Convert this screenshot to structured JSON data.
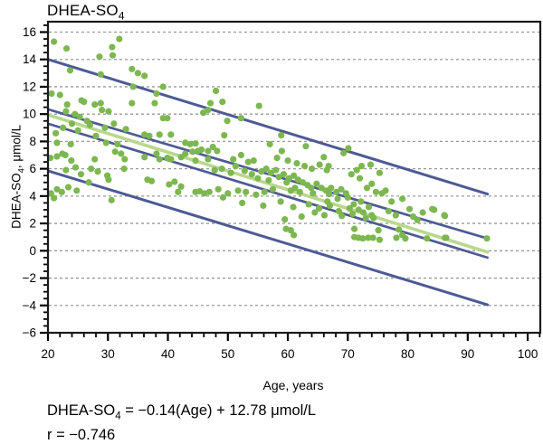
{
  "title": {
    "main": "DHEA-SO",
    "sub": "4"
  },
  "axes": {
    "x_label": "Age, years",
    "y_label_pre": "DHEA-SO",
    "y_label_sub": "4",
    "y_label_post": ", μmol/L"
  },
  "caption": {
    "line1_pre": "DHEA-SO",
    "line1_sub": "4",
    "line1_post": " = −0.14(Age) + 12.78 μmol/L",
    "line2": "r = −0.746"
  },
  "chart_data": {
    "type": "scatter",
    "title": "DHEA-SO4",
    "xlabel": "Age, years",
    "ylabel": "DHEA-SO4, umol/L",
    "xlim": [
      20,
      102.1
    ],
    "ylim": [
      -6,
      16.76
    ],
    "grid": "horizontal-dashed",
    "gridlines_y": [
      -4,
      -2,
      0,
      2,
      4,
      6,
      8,
      10,
      12,
      14,
      16
    ],
    "x_tick_values": [
      20,
      30,
      40,
      50,
      60,
      70,
      80,
      90,
      100
    ],
    "x_tick_labels": [
      "20",
      "30",
      "40",
      "50",
      "60",
      "70",
      "80",
      "90",
      "100"
    ],
    "x_minor_step": 2,
    "y_tick_values": [
      16,
      14,
      12,
      10,
      8,
      6,
      4,
      2,
      0,
      -2,
      -4,
      -6
    ],
    "y_tick_labels": [
      "16",
      "14",
      "12",
      "10",
      "8",
      "6",
      "4",
      "2",
      "0",
      "−2",
      "−4",
      "−6"
    ],
    "y_minor_step": 0.5,
    "regression_equation": "DHEA-SO4 = -0.14(Age) + 12.78 umol/L",
    "correlation_r": -0.746,
    "line_color": "#4d5a94",
    "regression_color": "#b9d88e",
    "point_color": "#7db751",
    "grid_color": "#999999",
    "lines": [
      {
        "name": "upper-prediction-line",
        "color": "#4d5a94",
        "width": 3.0,
        "x": [
          20,
          93.3
        ],
        "y": [
          14.0,
          4.15
        ]
      },
      {
        "name": "upper-confidence-line",
        "color": "#4d5a94",
        "width": 2.7,
        "x": [
          20,
          93.3
        ],
        "y": [
          10.35,
          0.9
        ]
      },
      {
        "name": "lower-confidence-line",
        "color": "#4d5a94",
        "width": 2.7,
        "x": [
          20,
          93.3
        ],
        "y": [
          9.3,
          -0.5
        ]
      },
      {
        "name": "regression-line",
        "color": "#b9d88e",
        "width": 3.6,
        "x": [
          20,
          93.3
        ],
        "y": [
          9.95,
          -0.1
        ]
      },
      {
        "name": "lower-prediction-line",
        "color": "#4d5a94",
        "width": 3.0,
        "x": [
          20,
          93.3
        ],
        "y": [
          5.85,
          -3.95
        ]
      }
    ],
    "point_radius": 3.6,
    "points": [
      [
        21.0,
        15.3
      ],
      [
        23.1,
        14.8
      ],
      [
        31.9,
        15.5
      ],
      [
        30.7,
        14.9
      ],
      [
        30.8,
        14.3
      ],
      [
        28.6,
        14.2
      ],
      [
        23.7,
        13.2
      ],
      [
        28.8,
        12.9
      ],
      [
        34.0,
        13.3
      ],
      [
        35.0,
        13.0
      ],
      [
        36.1,
        12.8
      ],
      [
        34.2,
        12.0
      ],
      [
        38.1,
        11.5
      ],
      [
        39.2,
        12.0
      ],
      [
        48.0,
        11.7
      ],
      [
        20.6,
        11.5
      ],
      [
        22.0,
        11.4
      ],
      [
        23.2,
        10.7
      ],
      [
        25.6,
        11.0
      ],
      [
        26.0,
        10.9
      ],
      [
        27.8,
        10.7
      ],
      [
        28.8,
        10.8
      ],
      [
        29.0,
        10.3
      ],
      [
        30.1,
        10.2
      ],
      [
        34.0,
        10.8
      ],
      [
        37.8,
        10.8
      ],
      [
        39.2,
        9.7
      ],
      [
        39.9,
        9.7
      ],
      [
        23.0,
        10.2
      ],
      [
        24.5,
        10.0
      ],
      [
        25.3,
        9.8
      ],
      [
        26.5,
        9.5
      ],
      [
        49.1,
        10.9
      ],
      [
        47.1,
        10.8
      ],
      [
        55.2,
        10.6
      ],
      [
        52.2,
        9.7
      ],
      [
        49.9,
        9.5
      ],
      [
        46.7,
        10.3
      ],
      [
        45.9,
        10.1
      ],
      [
        24.0,
        9.3
      ],
      [
        27.0,
        9.2
      ],
      [
        22.5,
        9.0
      ],
      [
        29.5,
        9.0
      ],
      [
        31.0,
        9.3
      ],
      [
        33.0,
        8.9
      ],
      [
        25.0,
        8.8
      ],
      [
        21.3,
        8.6
      ],
      [
        28.0,
        8.4
      ],
      [
        21.5,
        7.9
      ],
      [
        23.8,
        7.8
      ],
      [
        29.7,
        7.9
      ],
      [
        31.6,
        7.8
      ],
      [
        20.4,
        6.8
      ],
      [
        21.5,
        6.9
      ],
      [
        22.4,
        7.1
      ],
      [
        22.9,
        7.0
      ],
      [
        23.9,
        6.6
      ],
      [
        27.8,
        6.7
      ],
      [
        31.2,
        7.25
      ],
      [
        32.2,
        7.1
      ],
      [
        32.8,
        6.7
      ],
      [
        32.7,
        6.0
      ],
      [
        36.1,
        6.85
      ],
      [
        38.1,
        7.1
      ],
      [
        38.6,
        6.7
      ],
      [
        39.9,
        6.8
      ],
      [
        40.5,
        6.7
      ],
      [
        36.1,
        8.5
      ],
      [
        36.9,
        8.4
      ],
      [
        38.6,
        8.5
      ],
      [
        40.5,
        8.5
      ],
      [
        42.9,
        7.9
      ],
      [
        43.7,
        7.8
      ],
      [
        44.6,
        7.85
      ],
      [
        42.2,
        6.85
      ],
      [
        42.9,
        7.1
      ],
      [
        44.1,
        7.25
      ],
      [
        45.0,
        7.3
      ],
      [
        45.6,
        7.4
      ],
      [
        46.7,
        7.3
      ],
      [
        44.6,
        6.6
      ],
      [
        46.7,
        6.7
      ],
      [
        23.0,
        5.9
      ],
      [
        24.6,
        6.1
      ],
      [
        25.5,
        5.6
      ],
      [
        27.2,
        6.0
      ],
      [
        28.3,
        5.8
      ],
      [
        26.8,
        5.0
      ],
      [
        29.9,
        5.5
      ],
      [
        30.1,
        5.2
      ],
      [
        36.6,
        5.2
      ],
      [
        37.3,
        5.1
      ],
      [
        40.2,
        4.85
      ],
      [
        41.1,
        5.05
      ],
      [
        42.2,
        4.7
      ],
      [
        41.7,
        4.3
      ],
      [
        23.4,
        4.65
      ],
      [
        20.5,
        4.2
      ],
      [
        21.5,
        4.5
      ],
      [
        22.3,
        4.3
      ],
      [
        24.8,
        4.4
      ],
      [
        21.0,
        3.85
      ],
      [
        30.6,
        3.7
      ],
      [
        44.6,
        4.3
      ],
      [
        45.3,
        4.35
      ],
      [
        46.1,
        4.2
      ],
      [
        46.9,
        4.3
      ],
      [
        49.4,
        8.45
      ],
      [
        58.9,
        8.45
      ],
      [
        47.5,
        7.6
      ],
      [
        48.2,
        7.3
      ],
      [
        52.2,
        7.0
      ],
      [
        50.9,
        6.7
      ],
      [
        53.4,
        6.5
      ],
      [
        54.3,
        6.6
      ],
      [
        51.3,
        6.2
      ],
      [
        49.0,
        6.0
      ],
      [
        47.8,
        5.9
      ],
      [
        50.5,
        5.7
      ],
      [
        52.8,
        5.85
      ],
      [
        54.0,
        5.6
      ],
      [
        55.6,
        5.8
      ],
      [
        56.4,
        6.0
      ],
      [
        57.2,
        5.7
      ],
      [
        58.0,
        5.9
      ],
      [
        55.0,
        5.3
      ],
      [
        56.8,
        5.15
      ],
      [
        58.5,
        5.4
      ],
      [
        59.3,
        5.6
      ],
      [
        60.2,
        5.3
      ],
      [
        61.0,
        5.5
      ],
      [
        48.4,
        4.5
      ],
      [
        50.0,
        4.2
      ],
      [
        51.7,
        4.4
      ],
      [
        53.0,
        4.3
      ],
      [
        54.7,
        4.1
      ],
      [
        56.1,
        4.3
      ],
      [
        57.5,
        4.5
      ],
      [
        49.2,
        3.9
      ],
      [
        52.4,
        3.5
      ],
      [
        55.9,
        3.3
      ],
      [
        58.8,
        3.6
      ],
      [
        59.5,
        2.3
      ],
      [
        57.0,
        7.8
      ],
      [
        59.0,
        7.3
      ],
      [
        58.2,
        6.8
      ],
      [
        60.0,
        6.6
      ],
      [
        61.5,
        6.4
      ],
      [
        62.8,
        6.2
      ],
      [
        63.0,
        7.65
      ],
      [
        59.8,
        5.0
      ],
      [
        61.7,
        5.2
      ],
      [
        62.5,
        5.0
      ],
      [
        63.3,
        4.8
      ],
      [
        61.2,
        4.6
      ],
      [
        60.5,
        4.4
      ],
      [
        62.0,
        4.3
      ],
      [
        63.9,
        4.6
      ],
      [
        64.8,
        4.9
      ],
      [
        65.6,
        4.6
      ],
      [
        64.2,
        4.2
      ],
      [
        66.4,
        4.4
      ],
      [
        67.2,
        4.6
      ],
      [
        66.9,
        4.15
      ],
      [
        68.1,
        4.3
      ],
      [
        68.9,
        4.5
      ],
      [
        69.7,
        4.2
      ],
      [
        60.9,
        3.2
      ],
      [
        63.5,
        3.4
      ],
      [
        65.2,
        3.1
      ],
      [
        67.0,
        3.3
      ],
      [
        68.5,
        2.9
      ],
      [
        70.3,
        3.1
      ],
      [
        71.0,
        3.4
      ],
      [
        71.8,
        3.0
      ],
      [
        66.1,
        2.6
      ],
      [
        62.3,
        2.5
      ],
      [
        64.5,
        2.8
      ],
      [
        69.0,
        2.55
      ],
      [
        70.8,
        2.7
      ],
      [
        72.6,
        2.8
      ],
      [
        73.5,
        3.2
      ],
      [
        72.2,
        3.6
      ],
      [
        70.0,
        3.9
      ],
      [
        68.3,
        3.8
      ],
      [
        66.6,
        3.6
      ],
      [
        73.0,
        2.4
      ],
      [
        74.0,
        2.6
      ],
      [
        64.0,
        6.0
      ],
      [
        65.3,
        6.3
      ],
      [
        66.5,
        5.9
      ],
      [
        66.0,
        6.85
      ],
      [
        66.8,
        6.2
      ],
      [
        69.3,
        7.15
      ],
      [
        70.1,
        7.5
      ],
      [
        72.3,
        6.2
      ],
      [
        73.8,
        6.3
      ],
      [
        71.5,
        5.9
      ],
      [
        70.6,
        5.6
      ],
      [
        72.0,
        5.3
      ],
      [
        74.0,
        4.9
      ],
      [
        73.2,
        4.6
      ],
      [
        75.3,
        5.7
      ],
      [
        76.3,
        4.4
      ],
      [
        74.7,
        4.3
      ],
      [
        75.7,
        4.2
      ],
      [
        77.3,
        3.6
      ],
      [
        79.1,
        3.8
      ],
      [
        80.3,
        3.05
      ],
      [
        81.6,
        2.25
      ],
      [
        84.1,
        3.05
      ],
      [
        86.1,
        2.6
      ],
      [
        74.3,
        2.4
      ],
      [
        78.5,
        1.55
      ],
      [
        76.8,
        2.9
      ],
      [
        78.0,
        2.6
      ],
      [
        80.9,
        2.5
      ],
      [
        82.5,
        2.8
      ],
      [
        84.4,
        3.0
      ],
      [
        86.2,
        2.55
      ],
      [
        59.7,
        1.6
      ],
      [
        60.5,
        1.5
      ],
      [
        61.0,
        1.15
      ],
      [
        71.1,
        1.6
      ],
      [
        71.1,
        1.0
      ],
      [
        71.8,
        0.95
      ],
      [
        72.5,
        0.9
      ],
      [
        73.4,
        0.95
      ],
      [
        74.2,
        0.95
      ],
      [
        75.1,
        1.5
      ],
      [
        75.3,
        0.8
      ],
      [
        78.1,
        0.95
      ],
      [
        79.1,
        1.15
      ],
      [
        79.6,
        0.9
      ],
      [
        83.2,
        0.9
      ],
      [
        86.2,
        0.95
      ],
      [
        86.4,
        0.95
      ],
      [
        93.2,
        0.9
      ]
    ]
  }
}
